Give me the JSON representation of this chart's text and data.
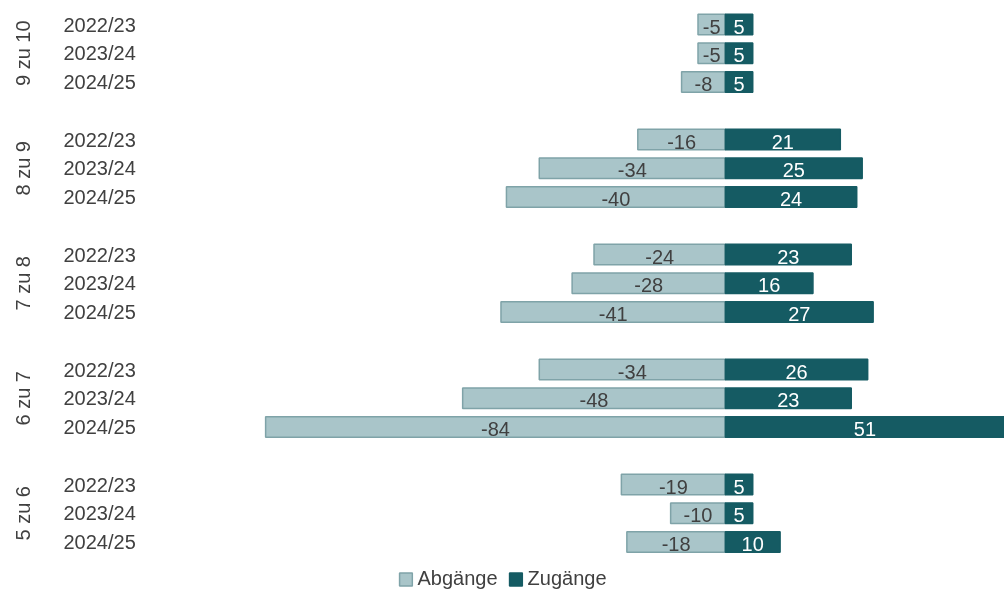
{
  "chart_data": {
    "type": "bar",
    "orientation": "horizontal",
    "categories": [
      "2022/23",
      "2023/24",
      "2024/25",
      "2022/23",
      "2023/24",
      "2024/25",
      "2022/23",
      "2023/24",
      "2024/25",
      "2022/23",
      "2023/24",
      "2024/25",
      "2022/23",
      "2023/24",
      "2024/25"
    ],
    "annotations": [
      "9 zu 10",
      "8 zu 9",
      "7 zu 8",
      "6 zu 7",
      "5 zu 6"
    ],
    "series": [
      {
        "name": "Abgänge",
        "color": "#a9c5c9",
        "values": [
          -5,
          -5,
          -8,
          -16,
          -34,
          -40,
          -24,
          -28,
          -41,
          -34,
          -48,
          -84,
          -19,
          -10,
          -18
        ]
      },
      {
        "name": "Zugänge",
        "color": "#155b63",
        "values": [
          5,
          5,
          5,
          21,
          25,
          24,
          23,
          16,
          27,
          26,
          23,
          51,
          5,
          5,
          10
        ]
      }
    ],
    "data_labels": true,
    "stacked": true,
    "legend": "bottom"
  }
}
